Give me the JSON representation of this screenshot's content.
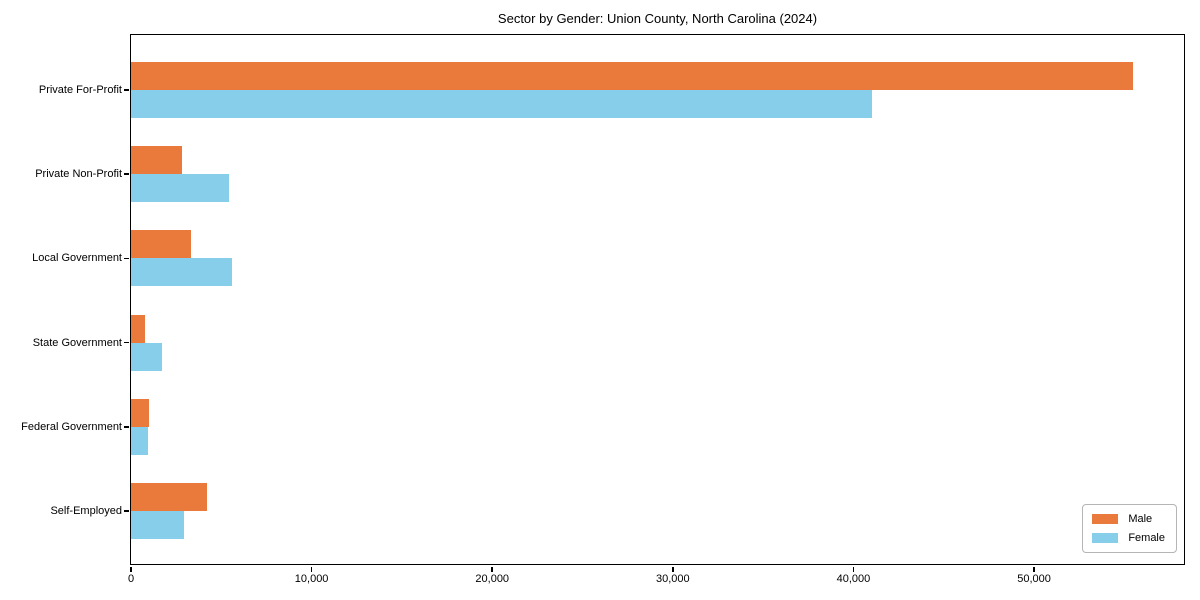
{
  "chart_data": {
    "type": "bar",
    "orientation": "horizontal",
    "title": "Sector by Gender: Union County, North Carolina (2024)",
    "categories": [
      "Private For-Profit",
      "Private Non-Profit",
      "Local Government",
      "State Government",
      "Federal Government",
      "Self-Employed"
    ],
    "series": [
      {
        "name": "Male",
        "color": "#e97a3c",
        "values": [
          55500,
          2850,
          3300,
          800,
          1000,
          4200
        ]
      },
      {
        "name": "Female",
        "color": "#87ceeb",
        "values": [
          41000,
          5450,
          5600,
          1700,
          950,
          2950
        ]
      }
    ],
    "xlabel": "",
    "ylabel": "",
    "xlim": [
      0,
      58300
    ],
    "xticks": [
      {
        "value": 0,
        "label": "0"
      },
      {
        "value": 10000,
        "label": "10,000"
      },
      {
        "value": 20000,
        "label": "20,000"
      },
      {
        "value": 30000,
        "label": "30,000"
      },
      {
        "value": 40000,
        "label": "40,000"
      },
      {
        "value": 50000,
        "label": "50,000"
      }
    ],
    "grid": false,
    "legend": {
      "position": "lower right",
      "entries": [
        "Male",
        "Female"
      ]
    },
    "colors": {
      "background": "#ffffff",
      "axis": "#000000",
      "legend_border": "#b5b5b5"
    }
  }
}
